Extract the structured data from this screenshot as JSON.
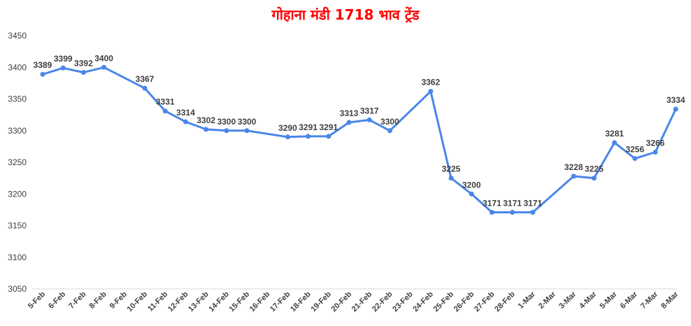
{
  "chart_data": {
    "type": "line",
    "title": "गोहाना मंडी 1718 भाव ट्रेंड",
    "xlabel": "",
    "ylabel": "",
    "ylim": [
      3050,
      3450
    ],
    "yticks": [
      3050,
      3100,
      3150,
      3200,
      3250,
      3300,
      3350,
      3400,
      3450
    ],
    "grid": false,
    "legend": "none",
    "line_color": "#4a86e8",
    "categories": [
      "5-Feb",
      "6-Feb",
      "7-Feb",
      "8-Feb",
      "9-Feb",
      "10-Feb",
      "11-Feb",
      "12-Feb",
      "13-Feb",
      "14-Feb",
      "15-Feb",
      "16-Feb",
      "17-Feb",
      "18-Feb",
      "19-Feb",
      "20-Feb",
      "21-Feb",
      "22-Feb",
      "23-Feb",
      "24-Feb",
      "25-Feb",
      "26-Feb",
      "27-Feb",
      "28-Feb",
      "1-Mar",
      "2-Mar",
      "3-Mar",
      "4-Mar",
      "5-Mar",
      "6-Mar",
      "7-Mar",
      "8-Mar"
    ],
    "series": [
      {
        "values": [
          3389,
          3399,
          3392,
          3400,
          null,
          3367,
          3331,
          3314,
          3302,
          3300,
          3300,
          null,
          3290,
          3291,
          3291,
          3313,
          3317,
          3300,
          null,
          3362,
          3225,
          3200,
          3171,
          3171,
          3171,
          null,
          3228,
          3225,
          3281,
          3256,
          3266,
          3334
        ]
      }
    ]
  }
}
